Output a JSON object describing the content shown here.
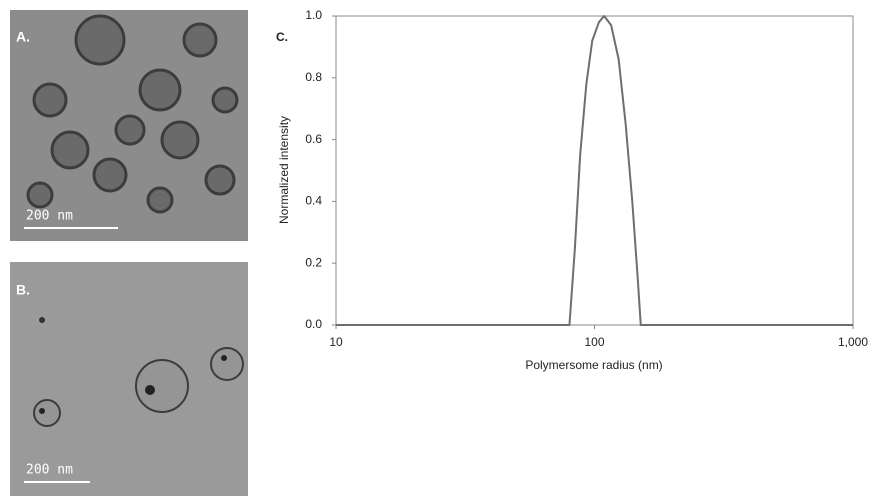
{
  "images": [
    {
      "label": "A.",
      "scale_bar": "200 nm"
    },
    {
      "label": "B.",
      "scale_bar": "200 nm"
    }
  ],
  "chart_data": {
    "type": "line",
    "panel_label": "C.",
    "x_label": "Polymersome radius (nm)",
    "y_label": "Normalized intensity",
    "x": [
      10,
      80,
      84,
      88,
      93,
      98,
      104,
      109,
      116,
      124,
      132,
      140,
      147,
      151,
      1000
    ],
    "values": [
      0,
      0,
      0.25,
      0.55,
      0.78,
      0.92,
      0.98,
      1.0,
      0.97,
      0.86,
      0.65,
      0.4,
      0.15,
      0,
      0
    ],
    "color": "#6e6e6e",
    "xscale": "log",
    "xlim": [
      10,
      1000
    ],
    "xticks": [
      10,
      100,
      {
        "value": 1000,
        "label": "1,000"
      }
    ],
    "ylim": [
      0,
      1
    ],
    "yticks": [
      {
        "value": 0,
        "label": "0.0"
      },
      {
        "value": 0.2,
        "label": "0.2"
      },
      {
        "value": 0.4,
        "label": "0.4"
      },
      {
        "value": 0.6,
        "label": "0.6"
      },
      {
        "value": 0.8,
        "label": "0.8"
      },
      {
        "value": 1,
        "label": "1.0"
      }
    ]
  }
}
